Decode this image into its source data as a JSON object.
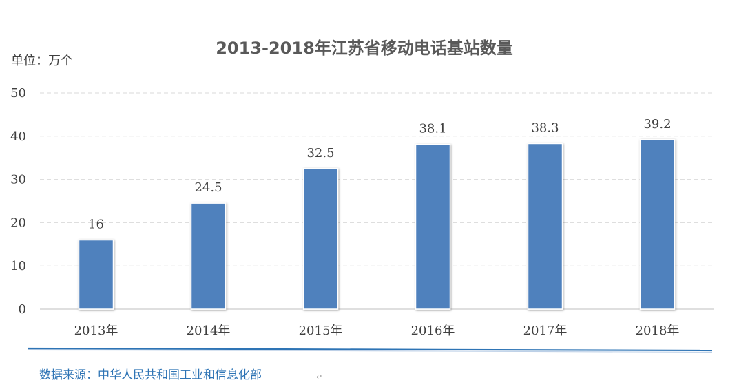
{
  "chart_data": {
    "type": "bar",
    "title": "2013-2018年江苏省移动电话基站数量",
    "unit_label": "单位：万个",
    "categories": [
      "2013年",
      "2014年",
      "2015年",
      "2016年",
      "2017年",
      "2018年"
    ],
    "values": [
      16,
      24.5,
      32.5,
      38.1,
      38.3,
      39.2
    ],
    "ylim": [
      0,
      50
    ],
    "yticks": [
      0,
      10,
      20,
      30,
      40,
      50
    ],
    "grid": true,
    "data_labels": true,
    "legend": "none",
    "bar_color": "#4f81bd",
    "grid_color": "#d9d9d9",
    "axis_color": "#bfbfbf"
  },
  "source": {
    "text": "数据来源：中华人民共和国工业和信息化部",
    "return_mark": "↵",
    "color": "#2e74b5"
  }
}
